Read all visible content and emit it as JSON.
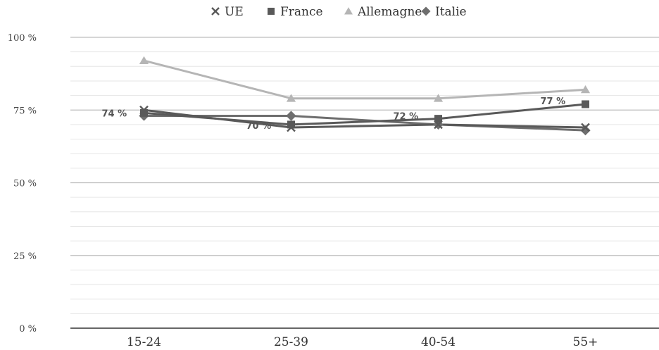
{
  "chart_data": {
    "type": "line",
    "categories": [
      "15-24",
      "25-39",
      "40-54",
      "55+"
    ],
    "yticks": [
      "0 %",
      "25 %",
      "50 %",
      "75 %",
      "100 %"
    ],
    "ylim": [
      0,
      100
    ],
    "grid": true,
    "legend_position": "top",
    "series": [
      {
        "name": "UE",
        "marker": "x",
        "color": "#595959",
        "values": [
          75,
          69,
          70,
          69
        ]
      },
      {
        "name": "France",
        "marker": "square",
        "color": "#595959",
        "values": [
          74,
          70,
          72,
          77
        ]
      },
      {
        "name": "Allemagne",
        "marker": "triangle",
        "color": "#b5b5b5",
        "values": [
          92,
          79,
          79,
          82
        ]
      },
      {
        "name": "Italie",
        "marker": "diamond",
        "color": "#6e6e6e",
        "values": [
          73,
          73,
          70,
          68
        ]
      }
    ],
    "data_labels": [
      {
        "series": "France",
        "index": 0,
        "text": "74 %"
      },
      {
        "series": "France",
        "index": 1,
        "text": "70 %"
      },
      {
        "series": "France",
        "index": 2,
        "text": "72 %"
      },
      {
        "series": "France",
        "index": 3,
        "text": "77 %"
      }
    ]
  }
}
